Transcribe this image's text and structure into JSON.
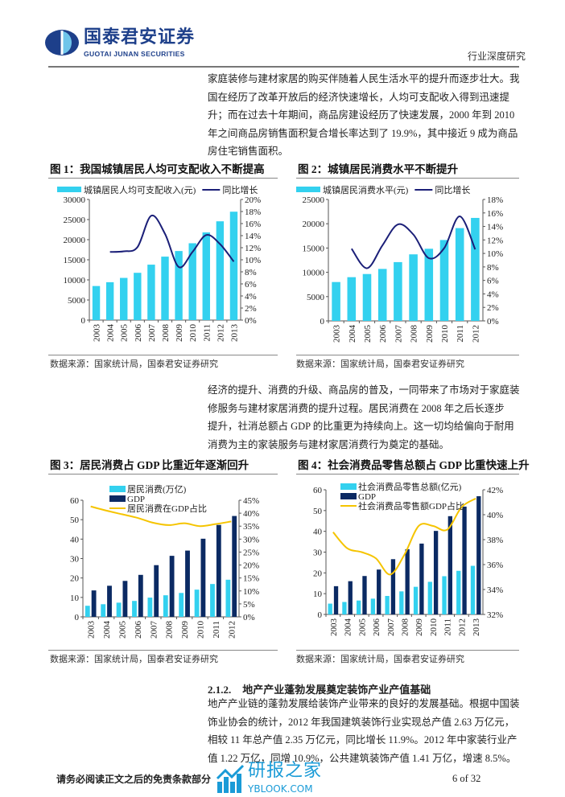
{
  "header": {
    "logo_cn": "国泰君安证券",
    "logo_en": "GUOTAI JUNAN SECURITIES",
    "report_type": "行业深度研究"
  },
  "intro_paragraph": [
    "家庭装修与建材家居的购买伴随着人民生活水平的提升而逐步壮大。我",
    "国在经历了改革开放后的经济快速增长，人均可支配收入得到迅速提",
    "升；而在过去十年期间，商品房建设经历了快速发展，2000 年到 2010",
    "年之间商品房销售面积复合增长率达到了 19.9%，其中接近 9 成为商品",
    "房住宅销售面积。"
  ],
  "middle_paragraph": [
    "经济的提升、消费的升级、商品房的普及，一同带来了市场对于家庭装",
    "修服务与建材家居消费的提升过程。居民消费在 2008 年之后长逐步",
    "提升，社消总额占 GDP 的比重更为持续向上。这一切均给偏向于耐用",
    "消费为主的家装服务与建材家居消费行为奠定的基础。"
  ],
  "section": {
    "number": "2.1.2.",
    "title": "地产产业蓬勃发展奠定装饰产业产值基础"
  },
  "section_paragraph": [
    "地产产业链的蓬勃发展给装饰产业带来的良好的发展基础。根据中国装",
    "饰业协会的统计，2012 年我国建筑装饰行业实现总产值 2.63 万亿元，",
    "相较 11 年总产值 2.35 万亿元，同比增长 11.9%。2012 年中家装行业产",
    "值 1.22 万亿，同增 10.9%，公共建筑装饰产值 1.41 万亿，增速 8.5%。"
  ],
  "footer": {
    "disclaimer": "请务必阅读正文之后的免责条款部分",
    "page": "6 of 32",
    "watermark_cn": "研报之家",
    "watermark_en": "YBLOOK.COM"
  },
  "colors": {
    "cyan": "#33d1ef",
    "navy": "#0b2a63",
    "line_navy": "#1b1f78",
    "yellow": "#f5c400",
    "brand": "#1d3f8a"
  },
  "chart_data": [
    {
      "type": "bar+line",
      "title": "图 1：我国城镇居民人均可支配收入不断提高",
      "source": "数据来源：国家统计局，国泰君安证券研究",
      "categories": [
        "2003",
        "2004",
        "2005",
        "2006",
        "2007",
        "2008",
        "2009",
        "2010",
        "2011",
        "2012",
        "2013"
      ],
      "series": [
        {
          "name": "城镇居民人均可支配收入(元)",
          "kind": "bar",
          "axis": "left",
          "values": [
            8472,
            9422,
            10493,
            11759,
            13786,
            15781,
            17175,
            19109,
            21810,
            24565,
            26955
          ]
        },
        {
          "name": "同比增长",
          "kind": "line",
          "axis": "right",
          "values": [
            null,
            11.3,
            11.4,
            12.1,
            17.3,
            14.3,
            8.8,
            11.3,
            14.1,
            12.6,
            9.7
          ]
        }
      ],
      "ylim": [
        0,
        30000
      ],
      "yticks": [
        0,
        5000,
        10000,
        15000,
        20000,
        25000,
        30000
      ],
      "y2lim": [
        0,
        20
      ],
      "y2ticks": [
        0,
        2,
        4,
        6,
        8,
        10,
        12,
        14,
        16,
        18,
        20
      ],
      "y2suffix": "%",
      "legend": "top"
    },
    {
      "type": "bar+line",
      "title": "图 2：城镇居民消费水平不断提升",
      "source": "数据来源：国家统计局，国泰君安证券研究",
      "categories": [
        "2003",
        "2004",
        "2005",
        "2006",
        "2007",
        "2008",
        "2009",
        "2010",
        "2011",
        "2012"
      ],
      "series": [
        {
          "name": "城镇居民消费水平(元)",
          "kind": "bar",
          "axis": "left",
          "values": [
            8000,
            9000,
            9650,
            10700,
            12100,
            13700,
            14850,
            16650,
            19100,
            21200
          ]
        },
        {
          "name": "同比增长",
          "kind": "line",
          "axis": "right",
          "values": [
            null,
            10.7,
            7.8,
            11.2,
            14.3,
            12.8,
            9.3,
            10.8,
            15.5,
            10.6
          ]
        }
      ],
      "ylim": [
        0,
        25000
      ],
      "yticks": [
        0,
        5000,
        10000,
        15000,
        20000,
        25000
      ],
      "y2lim": [
        0,
        18
      ],
      "y2ticks": [
        0,
        2,
        4,
        6,
        8,
        10,
        12,
        14,
        16,
        18
      ],
      "y2suffix": "%",
      "legend": "top"
    },
    {
      "type": "grouped-bar+line",
      "title": "图 3：居民消费占 GDP 比重近年逐渐回升",
      "source": "数据来源：国家统计局，国泰君安证券研究",
      "categories": [
        "2003",
        "2004",
        "2005",
        "2006",
        "2007",
        "2008",
        "2009",
        "2010",
        "2011",
        "2012"
      ],
      "series": [
        {
          "name": "居民消费(万亿)",
          "kind": "bar",
          "axis": "left",
          "values": [
            5.7,
            6.5,
            7.3,
            8.2,
            9.9,
            11.1,
            12.3,
            14.0,
            16.9,
            19.1
          ]
        },
        {
          "name": "GDP",
          "kind": "bar",
          "axis": "left",
          "values": [
            13.6,
            16.0,
            18.5,
            21.6,
            26.6,
            31.4,
            34.1,
            40.2,
            47.3,
            51.9
          ]
        },
        {
          "name": "居民消费在GDP占比",
          "kind": "line",
          "axis": "right",
          "values": [
            42.6,
            41.0,
            39.6,
            38.2,
            36.3,
            35.4,
            36.1,
            35.0,
            35.8,
            36.8
          ]
        }
      ],
      "ylim": [
        0,
        60
      ],
      "yticks": [
        0,
        10,
        20,
        30,
        40,
        50,
        60
      ],
      "y2lim": [
        0,
        45
      ],
      "y2ticks": [
        0,
        5,
        10,
        15,
        20,
        25,
        30,
        35,
        40,
        45
      ],
      "y2suffix": "%",
      "legend": "top-center"
    },
    {
      "type": "grouped-bar+line",
      "title": "图 4：社会消费品零售总额占 GDP 比重快速上升",
      "source": "数据来源：国家统计局，国泰君安证券研究",
      "categories": [
        "2003",
        "2004",
        "2005",
        "2006",
        "2007",
        "2008",
        "2009",
        "2010",
        "2011",
        "2012",
        "2013"
      ],
      "series": [
        {
          "name": "社会消费品零售总额(亿元)",
          "kind": "bar",
          "axis": "left",
          "values": [
            5.2,
            6.0,
            6.7,
            7.6,
            8.9,
            11.1,
            13.3,
            15.7,
            18.4,
            21.0,
            23.4
          ]
        },
        {
          "name": "GDP",
          "kind": "bar",
          "axis": "left",
          "values": [
            13.6,
            16.0,
            18.5,
            21.6,
            26.6,
            31.4,
            34.1,
            40.2,
            47.3,
            51.9,
            56.9
          ]
        },
        {
          "name": "社会消费品零售额GDP占比",
          "kind": "line",
          "axis": "right",
          "values": [
            38.6,
            37.3,
            37.0,
            36.5,
            35.2,
            36.8,
            39.1,
            39.1,
            38.8,
            40.6,
            41.3
          ]
        }
      ],
      "ylim": [
        0,
        60
      ],
      "yticks": [
        0,
        10,
        20,
        30,
        40,
        50,
        60
      ],
      "y2lim": [
        32,
        42
      ],
      "y2ticks": [
        32,
        34,
        36,
        38,
        40,
        42
      ],
      "y2suffix": "%",
      "legend": "top-center"
    }
  ]
}
